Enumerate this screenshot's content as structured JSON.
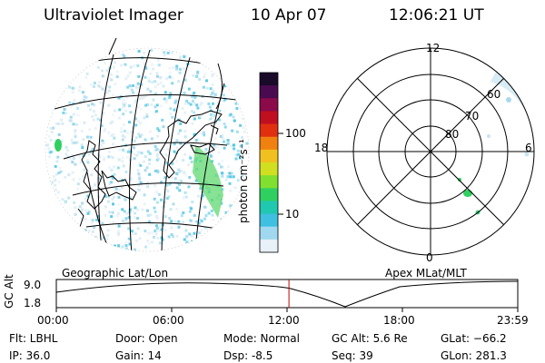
{
  "header": {
    "title": "Ultraviolet Imager",
    "date": "10 Apr 07",
    "time": "12:06:21 UT"
  },
  "colorbar": {
    "unit_label": "photon cm⁻²s⁻¹",
    "tick_labels": [
      "100",
      "10"
    ],
    "colors": [
      "#1a0a2a",
      "#4a0a50",
      "#8a0a4a",
      "#c01020",
      "#e03010",
      "#f08010",
      "#f0c020",
      "#d0e020",
      "#80e030",
      "#30d060",
      "#20c8b0",
      "#40c0e0",
      "#a0d8f0",
      "#e8f0f8"
    ]
  },
  "left_map": {
    "caption": "Geographic Lat/Lon"
  },
  "polar_plot": {
    "caption": "Apex MLat/MLT",
    "mlt_labels": {
      "top": "12",
      "left": "18",
      "right": "6",
      "bottom": "0"
    },
    "lat_labels": [
      "60",
      "70",
      "80"
    ]
  },
  "altitude_panel": {
    "ylabel": "GC Alt",
    "y_ticks": [
      "9.0",
      "1.8"
    ],
    "x_ticks": [
      "00:00",
      "06:00",
      "12:00",
      "18:00",
      "23:59"
    ],
    "marker_time_hours": 12.1
  },
  "info": {
    "flt": "Flt: LBHL",
    "ip": "IP: 36.0",
    "door": "Door: Open",
    "gain": "Gain: 14",
    "mode": "Mode: Normal",
    "dsp": "Dsp:    -8.5",
    "gcalt": "GC Alt: 5.6 Re",
    "seq": "Seq: 39",
    "glat": "GLat: −66.2",
    "glon": "GLon: 281.3"
  },
  "colors": {
    "aurora_green": "#30d060",
    "cyan": "#40c0e0",
    "pale": "#c8e4f0",
    "marker_red": "#c00000"
  }
}
